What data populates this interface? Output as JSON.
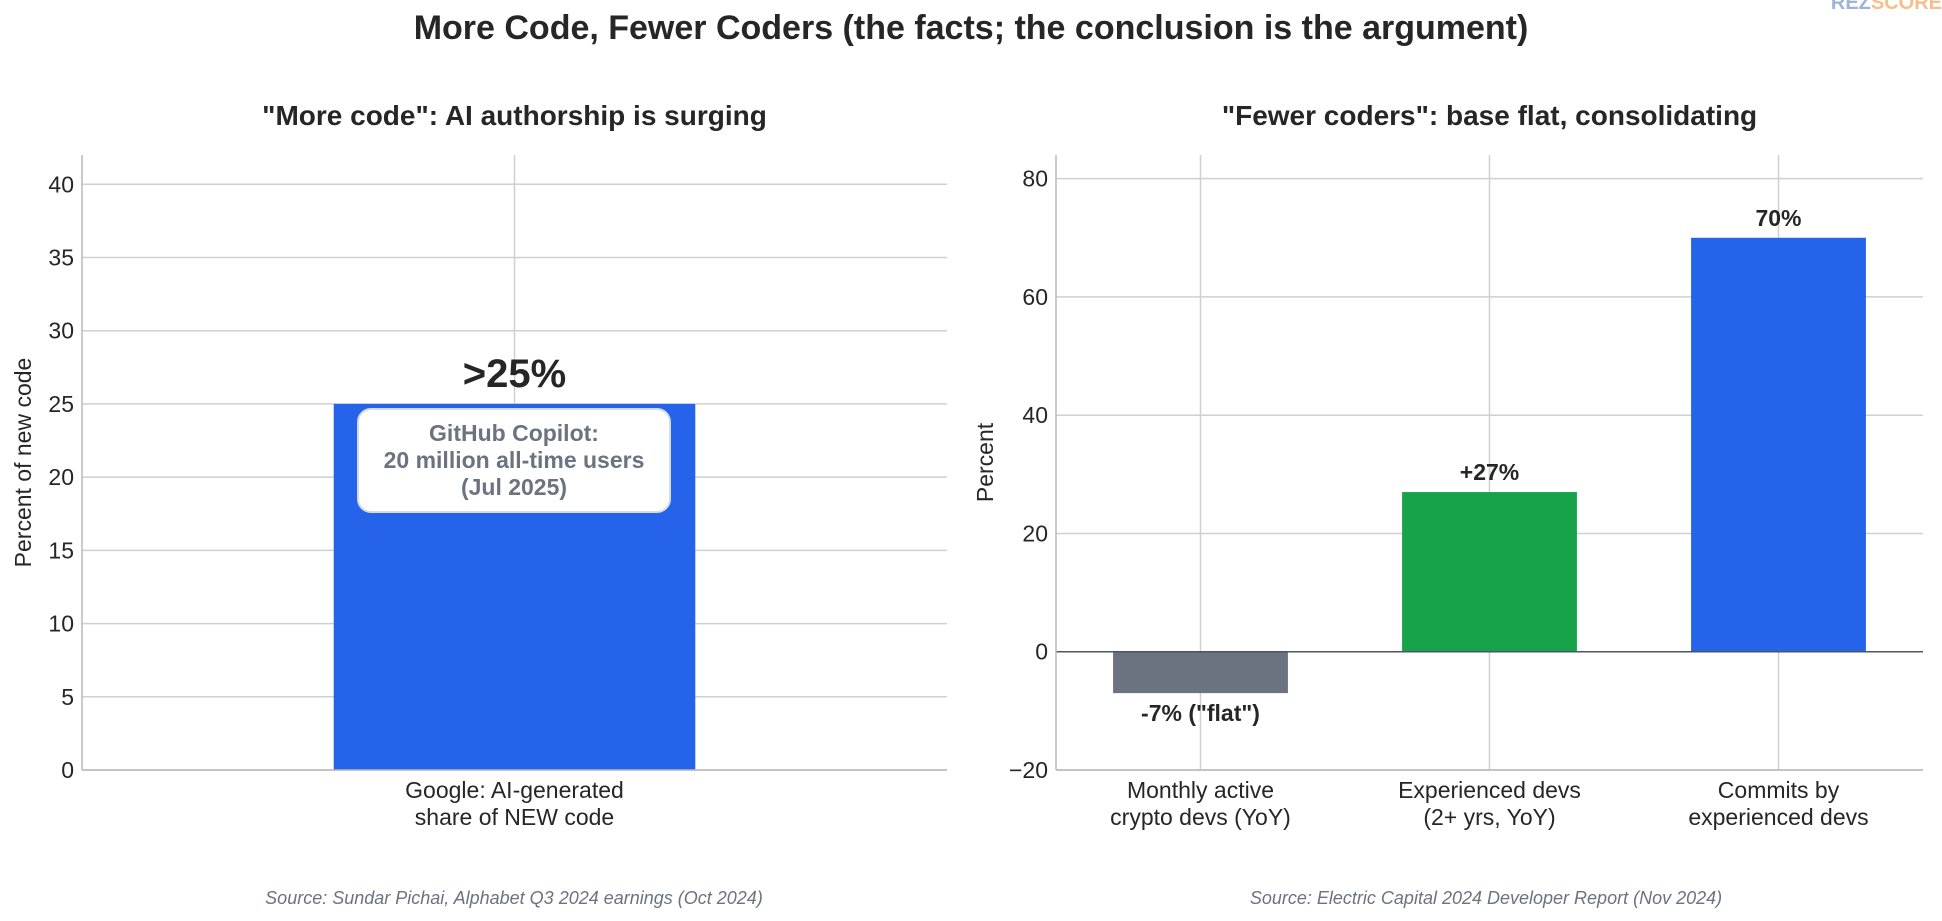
{
  "title": "More Code, Fewer Coders (the facts; the conclusion is the argument)",
  "brand": {
    "part1": "REZ",
    "part2": "SCORE",
    "color1": "#4a78b8",
    "color2": "#f08a2c"
  },
  "chart_data": [
    {
      "type": "bar",
      "title": "\"More code\": AI authorship is surging",
      "ylabel": "Percent of new code",
      "xlabel": "",
      "ylim": [
        0,
        42
      ],
      "yticks": [
        0,
        5,
        10,
        15,
        20,
        25,
        30,
        35,
        40
      ],
      "ytick_labels": [
        "0",
        "5",
        "10",
        "15",
        "20",
        "25",
        "30",
        "35",
        "40"
      ],
      "grid": true,
      "categories": [
        [
          "Google: AI-generated",
          "share of NEW code"
        ]
      ],
      "values": [
        25
      ],
      "value_labels": [
        ">25%"
      ],
      "colors": [
        "#2563eb"
      ],
      "annotation": [
        "GitHub Copilot:",
        "20 million all-time users",
        "(Jul 2025)"
      ],
      "source": "Source: Sundar Pichai, Alphabet Q3 2024 earnings (Oct 2024)"
    },
    {
      "type": "bar",
      "title": "\"Fewer coders\": base flat, consolidating",
      "ylabel": "Percent",
      "xlabel": "",
      "ylim": [
        -20,
        84
      ],
      "yticks": [
        -20,
        0,
        20,
        40,
        60,
        80
      ],
      "ytick_labels": [
        "−20",
        "0",
        "20",
        "40",
        "60",
        "80"
      ],
      "grid": true,
      "categories": [
        [
          "Monthly active",
          "crypto devs (YoY)"
        ],
        [
          "Experienced devs",
          "(2+ yrs, YoY)"
        ],
        [
          "Commits by",
          "experienced devs"
        ]
      ],
      "values": [
        -7,
        27,
        70
      ],
      "value_labels": [
        "-7% (\"flat\")",
        "+27%",
        "70%"
      ],
      "colors": [
        "#6b7280",
        "#16a34a",
        "#2563eb"
      ],
      "zero_line_color": "#4b5563",
      "source": "Source: Electric Capital 2024 Developer Report (Nov 2024)"
    }
  ]
}
